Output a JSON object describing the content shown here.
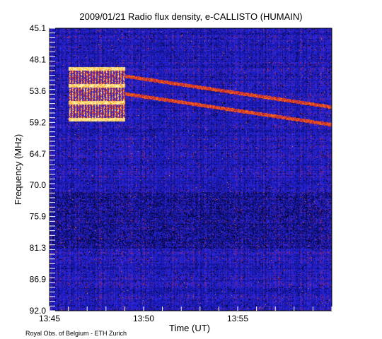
{
  "chart_data": {
    "type": "heatmap",
    "title": "2009/01/21  Radio flux density, e-CALLISTO (HUMAIN)",
    "xlabel": "Time (UT)",
    "ylabel": "Frequency (MHz)",
    "x_start": "13:45",
    "x_end": "14:00",
    "x_ticks": [
      "13:45",
      "13:50",
      "13:55"
    ],
    "y_ticks": [
      "45.1",
      "48.1",
      "53.6",
      "59.2",
      "64.7",
      "70.0",
      "75.9",
      "81.3",
      "86.9",
      "92.0"
    ],
    "ylim": [
      92.0,
      45.1
    ],
    "colormap": [
      "#000000",
      "#1414a0",
      "#2a2af0",
      "#c02030",
      "#ff6a10",
      "#ffe860",
      "#ffffff"
    ],
    "features": [
      {
        "kind": "burst",
        "freq_range": [
          51.5,
          60.5
        ],
        "time_range": [
          "13:46",
          "13:49"
        ],
        "intensity": "high"
      },
      {
        "kind": "drifting_lane",
        "freq_range": [
          53.0,
          60.0
        ],
        "time_range": [
          "13:49",
          "14:00"
        ],
        "intensity": "medium"
      }
    ],
    "credit": "Royal Obs. of Belgium - ETH Zurich"
  }
}
